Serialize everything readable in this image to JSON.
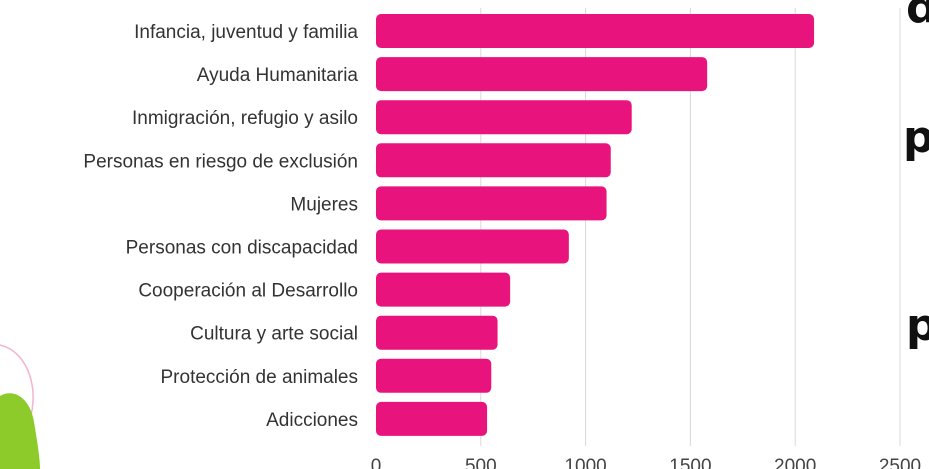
{
  "chart_data": {
    "type": "bar",
    "orientation": "horizontal",
    "categories": [
      "Infancia, juventud y familia",
      "Ayuda Humanitaria",
      "Inmigración, refugio y asilo",
      "Personas en riesgo de exclusión",
      "Mujeres",
      "Personas con discapacidad",
      "Cooperación al Desarrollo",
      "Cultura y arte social",
      "Protección de animales",
      "Adicciones"
    ],
    "values": [
      2090,
      1580,
      1220,
      1120,
      1100,
      920,
      640,
      580,
      550,
      530
    ],
    "xlim": [
      0,
      2500
    ],
    "xticks": [
      "0",
      "500",
      "1000",
      "1500",
      "2000",
      "2500"
    ],
    "grid": true,
    "bar_color": "#e8137c",
    "title": "",
    "xlabel": "",
    "ylabel": ""
  },
  "side_text": [
    "d",
    "p",
    "p"
  ],
  "colors": {
    "decoration_green": "#8ccb2a",
    "decoration_pink": "#f3b3cf"
  }
}
